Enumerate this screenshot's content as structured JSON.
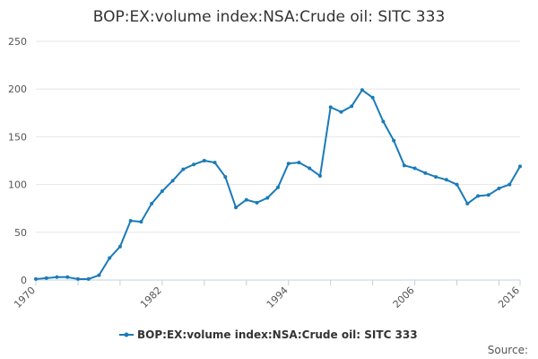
{
  "chart_data": {
    "type": "line",
    "title": "BOP:EX:volume index:NSA:Crude oil: SITC 333",
    "xlabel": "",
    "ylabel": "",
    "xlim": [
      1970,
      2016
    ],
    "ylim": [
      0,
      250
    ],
    "y_ticks": [
      0,
      50,
      100,
      150,
      200,
      250
    ],
    "x_tick_labels": [
      "1970",
      "1982",
      "1994",
      "2006",
      "2016"
    ],
    "grid": true,
    "legend_position": "bottom",
    "series": [
      {
        "name": "BOP:EX:volume index:NSA:Crude oil: SITC 333",
        "color": "#1a7bb8",
        "x": [
          1970,
          1971,
          1972,
          1973,
          1974,
          1975,
          1976,
          1977,
          1978,
          1979,
          1980,
          1981,
          1982,
          1983,
          1984,
          1985,
          1986,
          1987,
          1988,
          1989,
          1990,
          1991,
          1992,
          1993,
          1994,
          1995,
          1996,
          1997,
          1998,
          1999,
          2000,
          2001,
          2002,
          2003,
          2004,
          2005,
          2006,
          2007,
          2008,
          2009,
          2010,
          2011,
          2012,
          2013,
          2014,
          2015,
          2016
        ],
        "y": [
          1,
          2,
          3,
          3,
          1,
          1,
          5,
          23,
          35,
          62,
          61,
          80,
          93,
          104,
          116,
          121,
          125,
          123,
          108,
          76,
          84,
          81,
          86,
          97,
          122,
          123,
          117,
          109,
          181,
          176,
          182,
          199,
          191,
          166,
          146,
          120,
          117,
          112,
          108,
          105,
          100,
          80,
          88,
          89,
          96,
          100,
          119
        ]
      }
    ]
  },
  "legend": {
    "label": "BOP:EX:volume index:NSA:Crude oil: SITC 333"
  },
  "source": {
    "label": "Source:"
  }
}
